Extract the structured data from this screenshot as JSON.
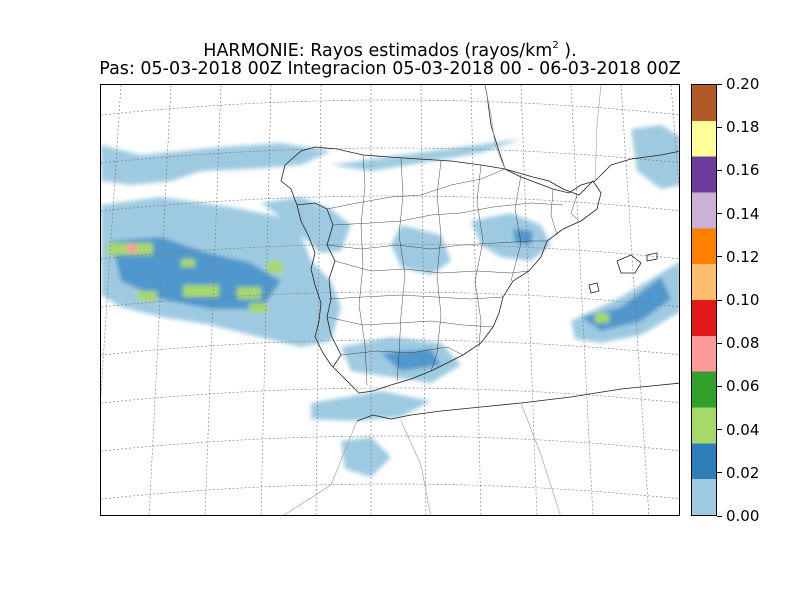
{
  "title": {
    "line1_prefix": "HARMONIE: Rayos estimados  (rayos/km",
    "line1_sup": "2",
    "line1_suffix": " ).",
    "line2": "Pas: 05-03-2018 00Z Integracion 05-03-2018 00 - 06-03-2018 00Z"
  },
  "colorbar": {
    "ticks": [
      "0.00",
      "0.02",
      "0.04",
      "0.06",
      "0.08",
      "0.10",
      "0.12",
      "0.14",
      "0.16",
      "0.18",
      "0.20"
    ],
    "colors": [
      "#9ecae1",
      "#2e7fb8",
      "#a6d96a",
      "#33a02c",
      "#fb9a99",
      "#e31a1c",
      "#fdbf6f",
      "#ff7f00",
      "#cab2d6",
      "#6a3d9a",
      "#ffff99",
      "#b15928"
    ]
  },
  "map": {
    "land_color": "#ffffff",
    "rain_color_low": "#9ecae1",
    "rain_color_mid": "#5a9fd0",
    "rain_color_high": "#a6d96a"
  }
}
